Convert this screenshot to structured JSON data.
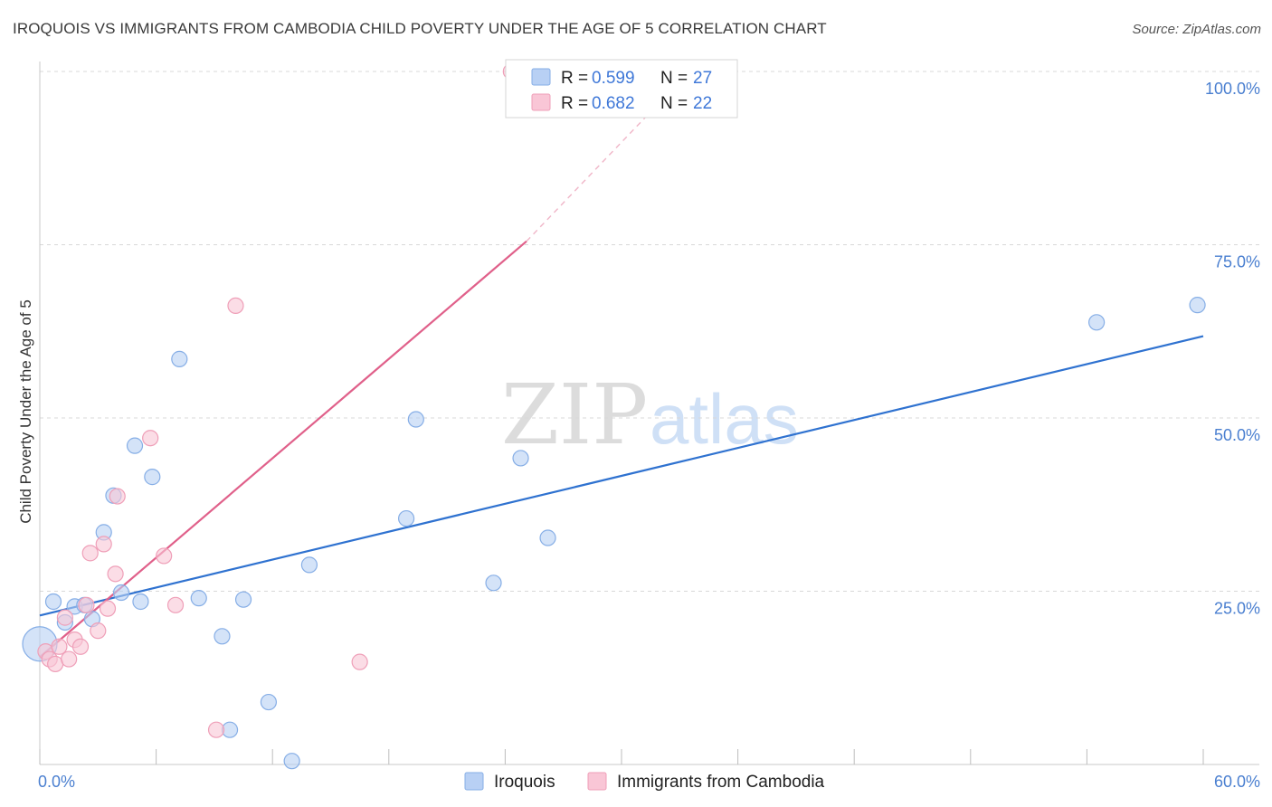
{
  "header": {
    "title": "IROQUOIS VS IMMIGRANTS FROM CAMBODIA CHILD POVERTY UNDER THE AGE OF 5 CORRELATION CHART",
    "source": "Source: ZipAtlas.com"
  },
  "watermark": {
    "zip": "ZIP",
    "atlas": "atlas"
  },
  "legend": {
    "iroquois": {
      "r_label": "R = ",
      "r_value": "0.599",
      "n_label": "N = ",
      "n_value": "27"
    },
    "cambodia": {
      "r_label": "R = ",
      "r_value": "0.682",
      "n_label": "N = ",
      "n_value": "22"
    }
  },
  "bottom_legend": {
    "iroquois": "Iroquois",
    "cambodia": "Immigrants from Cambodia"
  },
  "colors": {
    "iroquois_fill": "#b8d0f4",
    "iroquois_stroke": "#86aee6",
    "iroquois_line": "#2f72d0",
    "cambodia_fill": "#f9c6d6",
    "cambodia_stroke": "#ef9fb8",
    "cambodia_line": "#e0608a",
    "axis_tick": "#4a7fd0",
    "grid": "#d8d8d8"
  },
  "chart_data": {
    "type": "scatter",
    "title": "IROQUOIS VS IMMIGRANTS FROM CAMBODIA CHILD POVERTY UNDER THE AGE OF 5 CORRELATION CHART",
    "xlabel": "",
    "ylabel": "Child Poverty Under the Age of 5",
    "xlim": [
      0,
      60
    ],
    "ylim": [
      0,
      100
    ],
    "x_tick_labels": [
      "0.0%",
      "60.0%"
    ],
    "y_tick_labels": [
      "25.0%",
      "50.0%",
      "75.0%",
      "100.0%"
    ],
    "y_ticks": [
      25,
      50,
      75,
      100
    ],
    "series": [
      {
        "name": "Iroquois",
        "r": 0.599,
        "n": 27,
        "points": [
          {
            "x": 0.0,
            "y": 17.4,
            "big": true
          },
          {
            "x": 0.7,
            "y": 23.5
          },
          {
            "x": 1.3,
            "y": 20.5
          },
          {
            "x": 1.8,
            "y": 22.8
          },
          {
            "x": 2.3,
            "y": 23.0
          },
          {
            "x": 2.7,
            "y": 21.0
          },
          {
            "x": 3.3,
            "y": 33.5
          },
          {
            "x": 3.8,
            "y": 38.8
          },
          {
            "x": 4.2,
            "y": 24.8
          },
          {
            "x": 4.9,
            "y": 46.0
          },
          {
            "x": 5.2,
            "y": 23.5
          },
          {
            "x": 5.8,
            "y": 41.5
          },
          {
            "x": 7.2,
            "y": 58.5
          },
          {
            "x": 8.2,
            "y": 24.0
          },
          {
            "x": 9.4,
            "y": 18.5
          },
          {
            "x": 9.8,
            "y": 5.0
          },
          {
            "x": 10.5,
            "y": 23.8
          },
          {
            "x": 11.8,
            "y": 9.0
          },
          {
            "x": 13.0,
            "y": 0.5
          },
          {
            "x": 13.9,
            "y": 28.8
          },
          {
            "x": 18.9,
            "y": 35.5
          },
          {
            "x": 19.4,
            "y": 49.8
          },
          {
            "x": 23.4,
            "y": 26.2
          },
          {
            "x": 24.8,
            "y": 44.2
          },
          {
            "x": 26.2,
            "y": 32.7
          },
          {
            "x": 54.5,
            "y": 63.8
          },
          {
            "x": 59.7,
            "y": 66.3
          }
        ],
        "trend": {
          "x0": 0,
          "y0": 21.5,
          "x1": 60,
          "y1": 61.8
        }
      },
      {
        "name": "Immigrants from Cambodia",
        "r": 0.682,
        "n": 22,
        "points": [
          {
            "x": 0.3,
            "y": 16.3
          },
          {
            "x": 0.5,
            "y": 15.2
          },
          {
            "x": 0.8,
            "y": 14.5
          },
          {
            "x": 1.0,
            "y": 17.0
          },
          {
            "x": 1.3,
            "y": 21.2
          },
          {
            "x": 1.5,
            "y": 15.2
          },
          {
            "x": 1.8,
            "y": 18.0
          },
          {
            "x": 2.1,
            "y": 17.0
          },
          {
            "x": 2.4,
            "y": 23.0
          },
          {
            "x": 2.6,
            "y": 30.5
          },
          {
            "x": 3.0,
            "y": 19.3
          },
          {
            "x": 3.3,
            "y": 31.8
          },
          {
            "x": 3.5,
            "y": 22.5
          },
          {
            "x": 3.9,
            "y": 27.5
          },
          {
            "x": 4.0,
            "y": 38.7
          },
          {
            "x": 5.7,
            "y": 47.1
          },
          {
            "x": 6.4,
            "y": 30.1
          },
          {
            "x": 7.0,
            "y": 23.0
          },
          {
            "x": 9.1,
            "y": 5.0
          },
          {
            "x": 10.1,
            "y": 66.2
          },
          {
            "x": 16.5,
            "y": 14.8
          },
          {
            "x": 24.3,
            "y": 100.0
          }
        ],
        "trend": {
          "x0": 0,
          "y0": 15.5,
          "x1": 25.1,
          "y1": 75.5,
          "x_dash_end": 33.5,
          "y_dash_end": 100.0
        }
      }
    ]
  }
}
